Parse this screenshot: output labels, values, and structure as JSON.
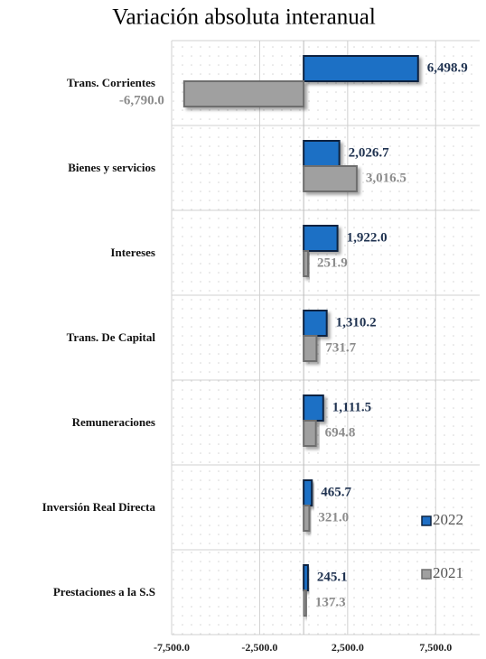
{
  "chart_data": {
    "type": "hbar",
    "title": "Variación absoluta interanual",
    "categories": [
      "Trans. Corrientes",
      "Bienes y servicios",
      "Intereses",
      "Trans. De Capital",
      "Remuneraciones",
      "Inversión Real Directa",
      "Prestaciones a la S.S"
    ],
    "series": [
      {
        "name": "2022",
        "color": "#1f6fc5",
        "label_color": "#1f3250",
        "values": [
          6498.9,
          2026.7,
          1922.0,
          1310.2,
          1111.5,
          465.7,
          245.1
        ],
        "value_labels": [
          "6,498.9",
          "2,026.7",
          "1,922.0",
          "1,310.2",
          "1,111.5",
          "465.7",
          "245.1"
        ]
      },
      {
        "name": "2021",
        "color": "#a0a0a0",
        "label_color": "#8c8c8c",
        "values": [
          -6790.0,
          3016.5,
          251.9,
          731.7,
          694.8,
          321.0,
          137.3
        ],
        "value_labels": [
          "-6,790.0",
          "3,016.5",
          "251.9",
          "731.7",
          "694.8",
          "321.0",
          "137.3"
        ]
      }
    ],
    "xlim": [
      -7500,
      10000
    ],
    "xticks": [
      {
        "value": -7500,
        "label": "-7,500.0"
      },
      {
        "value": -2500,
        "label": "-2,500.0"
      },
      {
        "value": 2500,
        "label": "2,500.0"
      },
      {
        "value": 7500,
        "label": "7,500.0"
      }
    ],
    "grid": true,
    "legend": "right"
  }
}
